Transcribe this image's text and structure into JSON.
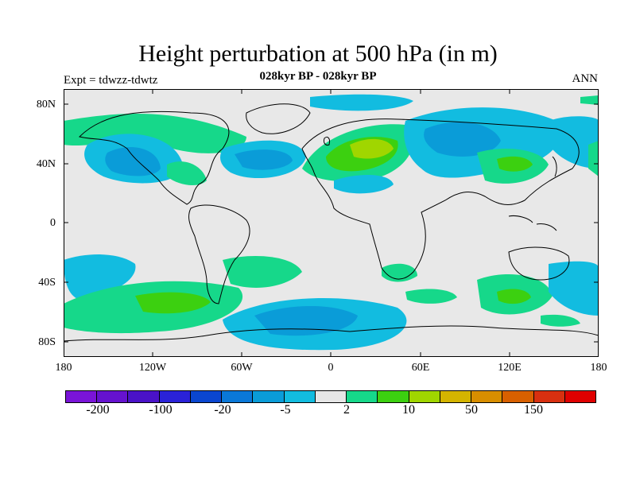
{
  "title": "Height perturbation at 500 hPa (in m)",
  "subtitle": "028kyr BP - 028kyr BP",
  "expt": "Expt = tdwzz-tdwtz",
  "season": "ANN",
  "lat_labels": [
    "80N",
    "40N",
    "0",
    "40S",
    "80S"
  ],
  "lon_labels": [
    "180",
    "120W",
    "60W",
    "0",
    "60E",
    "120E",
    "180"
  ],
  "colorbar": {
    "colors": [
      "#7a14d8",
      "#6512cf",
      "#4a12c8",
      "#2a22d8",
      "#0a46d0",
      "#0a78d8",
      "#0a9cd8",
      "#12bce0",
      "#e6e6e6",
      "#16d88a",
      "#3cd010",
      "#a0d600",
      "#d4b400",
      "#d88e00",
      "#d86000",
      "#d83010",
      "#e00000"
    ],
    "labels": [
      "-200",
      "-100",
      "-20",
      "-5",
      "2",
      "10",
      "50",
      "150"
    ]
  },
  "map_colors": {
    "background": "#e8e8e8",
    "coast": "#000000"
  }
}
